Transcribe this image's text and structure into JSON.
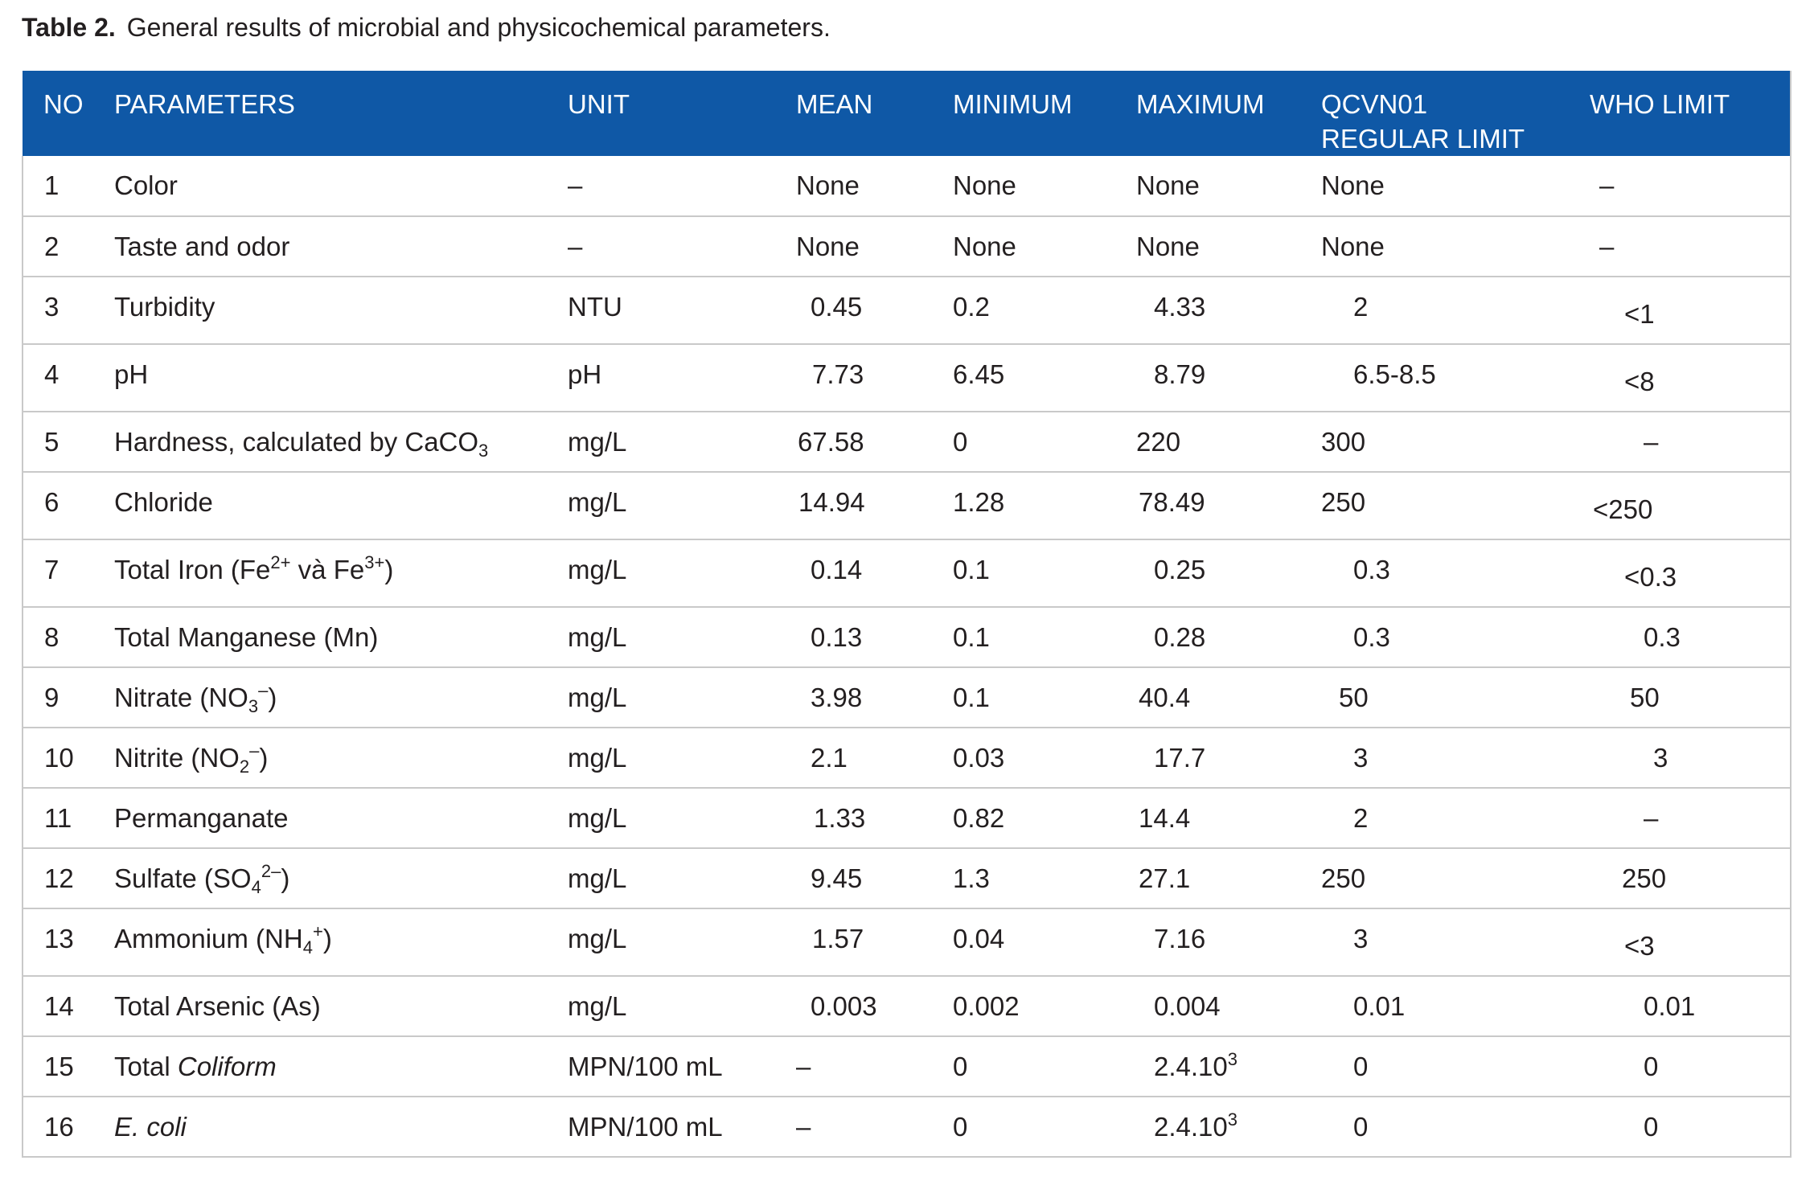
{
  "caption": {
    "label": "Table 2.",
    "text": "General results of microbial and physicochemical parameters."
  },
  "headers": {
    "no": "NO",
    "parameters": "PARAMETERS",
    "unit": "UNIT",
    "mean": "MEAN",
    "minimum": "MINIMUM",
    "maximum": "MAXIMUM",
    "qcvn_line1": "QCVN01",
    "qcvn_line2": "REGULAR LIMIT",
    "who": "WHO LIMIT"
  },
  "rows": [
    {
      "no": "1",
      "param": "Color",
      "unit": "–",
      "mean": "None",
      "min": "None",
      "max": "None",
      "qcvn": "None",
      "who": "–"
    },
    {
      "no": "2",
      "param": "Taste and odor",
      "unit": "–",
      "mean": "None",
      "min": "None",
      "max": "None",
      "qcvn": "None",
      "who": "–"
    },
    {
      "no": "3",
      "param": "Turbidity",
      "unit": "NTU",
      "mean": "0.45",
      "min": "0.2",
      "max": "4.33",
      "qcvn": "2",
      "who": "<1"
    },
    {
      "no": "4",
      "param": "pH",
      "unit": "pH",
      "mean": "7.73",
      "min": "6.45",
      "max": "8.79",
      "qcvn": "6.5-8.5",
      "who": "<8"
    },
    {
      "no": "5",
      "param_main": "Hardness, calculated by CaCO",
      "param_sub": "3",
      "unit": "mg/L",
      "mean": "67.58",
      "min": "0",
      "max": "220",
      "qcvn": "300",
      "who": "–"
    },
    {
      "no": "6",
      "param": "Chloride",
      "unit": "mg/L",
      "mean": "14.94",
      "min": "1.28",
      "max": "78.49",
      "qcvn": "250",
      "who": "<250"
    },
    {
      "no": "7",
      "param_a": "Total Iron (Fe",
      "param_sup1": "2+",
      "param_b": " và Fe",
      "param_sup2": "3+",
      "param_c": ")",
      "unit": "mg/L",
      "mean": "0.14",
      "min": "0.1",
      "max": "0.25",
      "qcvn": "0.3",
      "who": "<0.3"
    },
    {
      "no": "8",
      "param": "Total Manganese (Mn)",
      "unit": "mg/L",
      "mean": "0.13",
      "min": "0.1",
      "max": "0.28",
      "qcvn": "0.3",
      "who": "0.3"
    },
    {
      "no": "9",
      "param_a": "Nitrate (NO",
      "param_sub": "3",
      "param_sup": "–",
      "param_c": ")",
      "unit": "mg/L",
      "mean": "3.98",
      "min": "0.1",
      "max": "40.4",
      "qcvn": "50",
      "who": "50"
    },
    {
      "no": "10",
      "param_a": "Nitrite (NO",
      "param_sub": "2",
      "param_sup": "–",
      "param_c": ")",
      "unit": "mg/L",
      "mean": "2.1",
      "min": "0.03",
      "max": "17.7",
      "qcvn": "3",
      "who": "3"
    },
    {
      "no": "11",
      "param": "Permanganate",
      "unit": "mg/L",
      "mean": "1.33",
      "min": "0.82",
      "max": "14.4",
      "qcvn": "2",
      "who": "–"
    },
    {
      "no": "12",
      "param_a": "Sulfate (SO",
      "param_sub": "4",
      "param_sup": "2–",
      "param_c": ")",
      "unit": "mg/L",
      "mean": "9.45",
      "min": "1.3",
      "max": "27.1",
      "qcvn": "250",
      "who": "250"
    },
    {
      "no": "13",
      "param_a": "Ammonium (NH",
      "param_sub": "4",
      "param_sup": "+",
      "param_c": ")",
      "unit": "mg/L",
      "mean": "1.57",
      "min": "0.04",
      "max": "7.16",
      "qcvn": "3",
      "who": "<3"
    },
    {
      "no": "14",
      "param": "Total Arsenic (As)",
      "unit": "mg/L",
      "mean": "0.003",
      "min": "0.002",
      "max": "0.004",
      "qcvn": "0.01",
      "who": "0.01"
    },
    {
      "no": "15",
      "param_a": "Total ",
      "param_i": "Coliform",
      "unit": "MPN/100 mL",
      "mean": "–",
      "min": "0",
      "max_base": "2.4.10",
      "max_sup": "3",
      "qcvn": "0",
      "who": "0"
    },
    {
      "no": "16",
      "param_i": "E. coli",
      "unit": "MPN/100 mL",
      "mean": "–",
      "min": "0",
      "max_base": "2.4.10",
      "max_sup": "3",
      "qcvn": "0",
      "who": "0"
    }
  ]
}
